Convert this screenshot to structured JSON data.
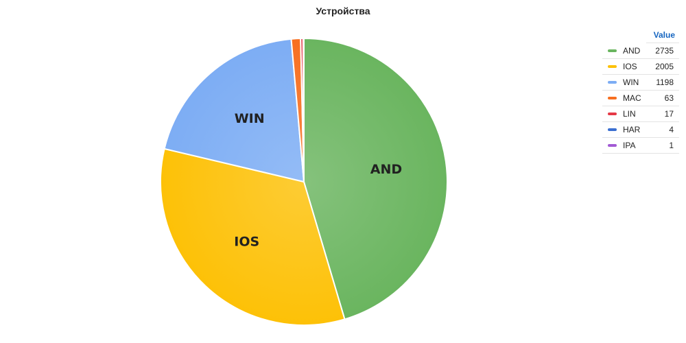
{
  "chart_data": {
    "type": "pie",
    "title": "Устройства",
    "legend_header": "Value",
    "legend_position": "right",
    "slices": [
      {
        "name": "AND",
        "value": 2735,
        "color": "#6ab55f",
        "show_label": true
      },
      {
        "name": "IOS",
        "value": 2005,
        "color": "#fdc107",
        "show_label": true
      },
      {
        "name": "WIN",
        "value": 1198,
        "color": "#7dadf4",
        "show_label": true
      },
      {
        "name": "MAC",
        "value": 63,
        "color": "#f76f20",
        "show_label": false
      },
      {
        "name": "LIN",
        "value": 17,
        "color": "#e53946",
        "show_label": false
      },
      {
        "name": "HAR",
        "value": 4,
        "color": "#3b6fd1",
        "show_label": false
      },
      {
        "name": "IPA",
        "value": 1,
        "color": "#a25ad4",
        "show_label": false
      }
    ]
  }
}
